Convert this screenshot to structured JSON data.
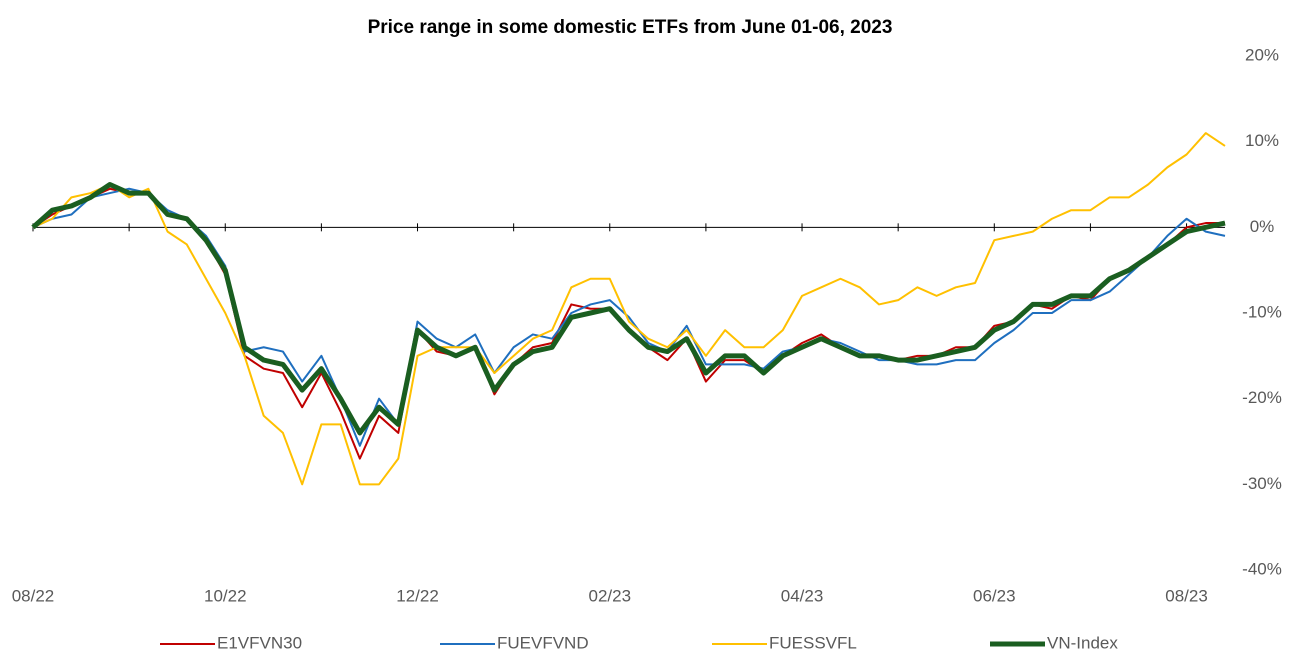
{
  "chart_data": {
    "type": "line",
    "title": "Price range in some domestic ETFs from June 01-06, 2023",
    "categories": [
      "08/22",
      null,
      null,
      null,
      null,
      null,
      null,
      null,
      null,
      null,
      "10/22",
      null,
      null,
      null,
      null,
      null,
      null,
      null,
      null,
      null,
      "12/22",
      null,
      null,
      null,
      null,
      null,
      null,
      null,
      null,
      null,
      "02/23",
      null,
      null,
      null,
      null,
      null,
      null,
      null,
      null,
      null,
      "04/23",
      null,
      null,
      null,
      null,
      null,
      null,
      null,
      null,
      null,
      "06/23",
      null,
      null,
      null,
      null,
      null,
      null,
      null,
      null,
      null,
      "08/23",
      null,
      null
    ],
    "ylim": [
      -40,
      20
    ],
    "yticks": [
      {
        "value": -40,
        "label": "-40%"
      },
      {
        "value": -30,
        "label": "-30%"
      },
      {
        "value": -20,
        "label": "-20%"
      },
      {
        "value": -10,
        "label": "-10%"
      },
      {
        "value": 0,
        "label": "0%"
      },
      {
        "value": 10,
        "label": "10%"
      },
      {
        "value": 20,
        "label": "20%"
      }
    ],
    "grid": false,
    "legend": "bottom",
    "series": [
      {
        "name": "E1VFVN30",
        "color": "#c00000",
        "width": 2,
        "values": [
          0,
          1.5,
          2.5,
          3.5,
          4.5,
          4,
          4,
          1.5,
          1,
          -1.5,
          -5.5,
          -15,
          -16.5,
          -17,
          -21,
          -17,
          -21.5,
          -27,
          -22,
          -24,
          -12,
          -14.5,
          -15,
          -14,
          -19.5,
          -16,
          -14,
          -13.5,
          -9,
          -9.5,
          -9.5,
          -12,
          -14,
          -15.5,
          -13,
          -18,
          -15.5,
          -15.5,
          -17,
          -15,
          -13.5,
          -12.5,
          -14,
          -15,
          -15,
          -15.5,
          -15,
          -15,
          -14,
          -14,
          -11.5,
          -11,
          -9,
          -9.5,
          -8,
          -8.5,
          -6,
          -5,
          -3.5,
          -2,
          0,
          0.5,
          0.5
        ]
      },
      {
        "name": "FUEVFVND",
        "color": "#1f6fbf",
        "width": 2,
        "values": [
          0,
          1,
          1.5,
          3.5,
          4,
          4.5,
          4,
          2,
          1,
          -1,
          -4.5,
          -14.5,
          -14,
          -14.5,
          -18,
          -15,
          -20,
          -25.5,
          -20,
          -23,
          -11,
          -13,
          -14,
          -12.5,
          -17,
          -14,
          -12.5,
          -13,
          -10,
          -9,
          -8.5,
          -10.5,
          -13.5,
          -14.5,
          -11.5,
          -16,
          -16,
          -16,
          -16.5,
          -14.5,
          -14,
          -13,
          -13.5,
          -14.5,
          -15.5,
          -15.5,
          -16,
          -16,
          -15.5,
          -15.5,
          -13.5,
          -12,
          -10,
          -10,
          -8.5,
          -8.5,
          -7.5,
          -5.5,
          -3.5,
          -1,
          1,
          -0.5,
          -1
        ]
      },
      {
        "name": "FUESSVFL",
        "color": "#ffc000",
        "width": 2,
        "values": [
          0,
          1,
          3.5,
          4,
          5,
          3.5,
          4.5,
          -0.5,
          -2,
          -6,
          -10,
          -15,
          -22,
          -24,
          -30,
          -23,
          -23,
          -30,
          -30,
          -27,
          -15,
          -14,
          -14,
          -14,
          -17,
          -15,
          -13,
          -12,
          -7,
          -6,
          -6,
          -11,
          -13,
          -14,
          -12,
          -15,
          -12,
          -14,
          -14,
          -12,
          -8,
          -7,
          -6,
          -7,
          -9,
          -8.5,
          -7,
          -8,
          -7,
          -6.5,
          -1.5,
          -1,
          -0.5,
          1,
          2,
          2,
          3.5,
          3.5,
          5,
          7,
          8.5,
          11,
          9.5
        ]
      },
      {
        "name": "VN-Index",
        "color": "#1a5e20",
        "width": 5,
        "values": [
          0,
          2,
          2.5,
          3.5,
          5,
          4,
          4,
          1.5,
          1,
          -1.5,
          -5,
          -14,
          -15.5,
          -16,
          -19,
          -16.5,
          -20,
          -24,
          -21,
          -23,
          -12,
          -14,
          -15,
          -14,
          -19,
          -16,
          -14.5,
          -14,
          -10.5,
          -10,
          -9.5,
          -12,
          -14,
          -14.5,
          -13,
          -17,
          -15,
          -15,
          -17,
          -15,
          -14,
          -13,
          -14,
          -15,
          -15,
          -15.5,
          -15.5,
          -15,
          -14.5,
          -14,
          -12,
          -11,
          -9,
          -9,
          -8,
          -8,
          -6,
          -5,
          -3.5,
          -2,
          -0.5,
          0,
          0.5
        ]
      }
    ]
  }
}
